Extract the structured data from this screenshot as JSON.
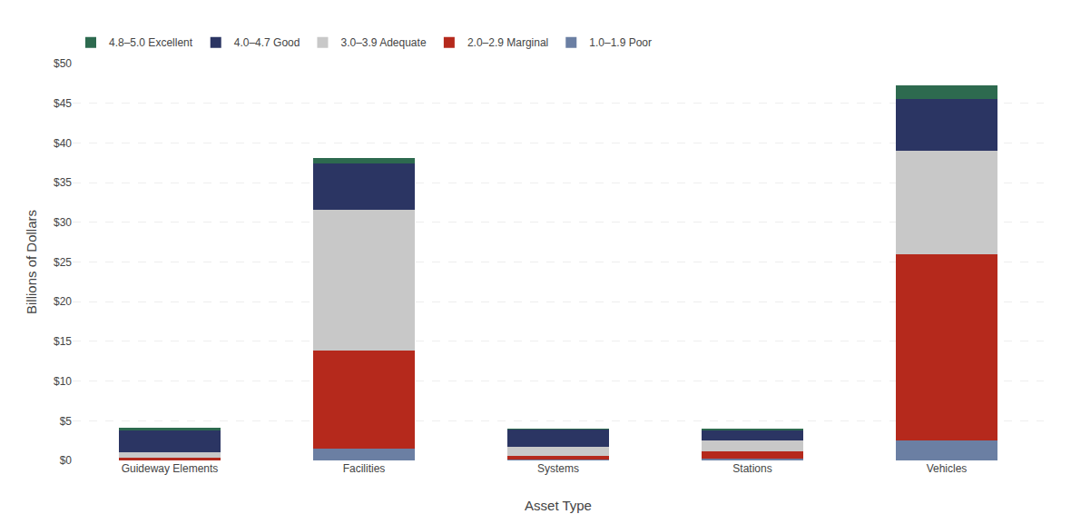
{
  "chart_data": {
    "type": "bar",
    "stacked": true,
    "categories": [
      "Guideway Elements",
      "Facilities",
      "Systems",
      "Stations",
      "Vehicles"
    ],
    "series": [
      {
        "name": "1.0–1.9 Poor",
        "color": "#6b7fa3",
        "values": [
          0.1,
          1.5,
          0.1,
          0.2,
          2.5
        ]
      },
      {
        "name": "2.0–2.9 Marginal",
        "color": "#b5291c",
        "values": [
          0.2,
          12.4,
          0.5,
          0.9,
          23.5
        ]
      },
      {
        "name": "3.0–3.9 Adequate",
        "color": "#c8c8c8",
        "values": [
          0.7,
          17.7,
          1.1,
          1.4,
          13.0
        ]
      },
      {
        "name": "4.0–4.7 Good",
        "color": "#2b3563",
        "values": [
          2.8,
          5.8,
          2.2,
          1.35,
          6.5
        ]
      },
      {
        "name": "4.8–5.0 Excellent",
        "color": "#2d6a4f",
        "values": [
          0.3,
          0.7,
          0.1,
          0.15,
          1.7
        ]
      }
    ],
    "xlabel": "Asset Type",
    "ylabel": "Billions of Dollars",
    "ylim": [
      0,
      50
    ],
    "yticks": [
      {
        "value": 0,
        "label": "$0"
      },
      {
        "value": 5,
        "label": "$5"
      },
      {
        "value": 10,
        "label": "$10"
      },
      {
        "value": 15,
        "label": "$15"
      },
      {
        "value": 20,
        "label": "$20"
      },
      {
        "value": 25,
        "label": "$25"
      },
      {
        "value": 30,
        "label": "$30"
      },
      {
        "value": 35,
        "label": "$35"
      },
      {
        "value": 40,
        "label": "$40"
      },
      {
        "value": 45,
        "label": "$45"
      },
      {
        "value": 50,
        "label": "$50"
      }
    ],
    "grid": true,
    "legend": "upper left"
  }
}
